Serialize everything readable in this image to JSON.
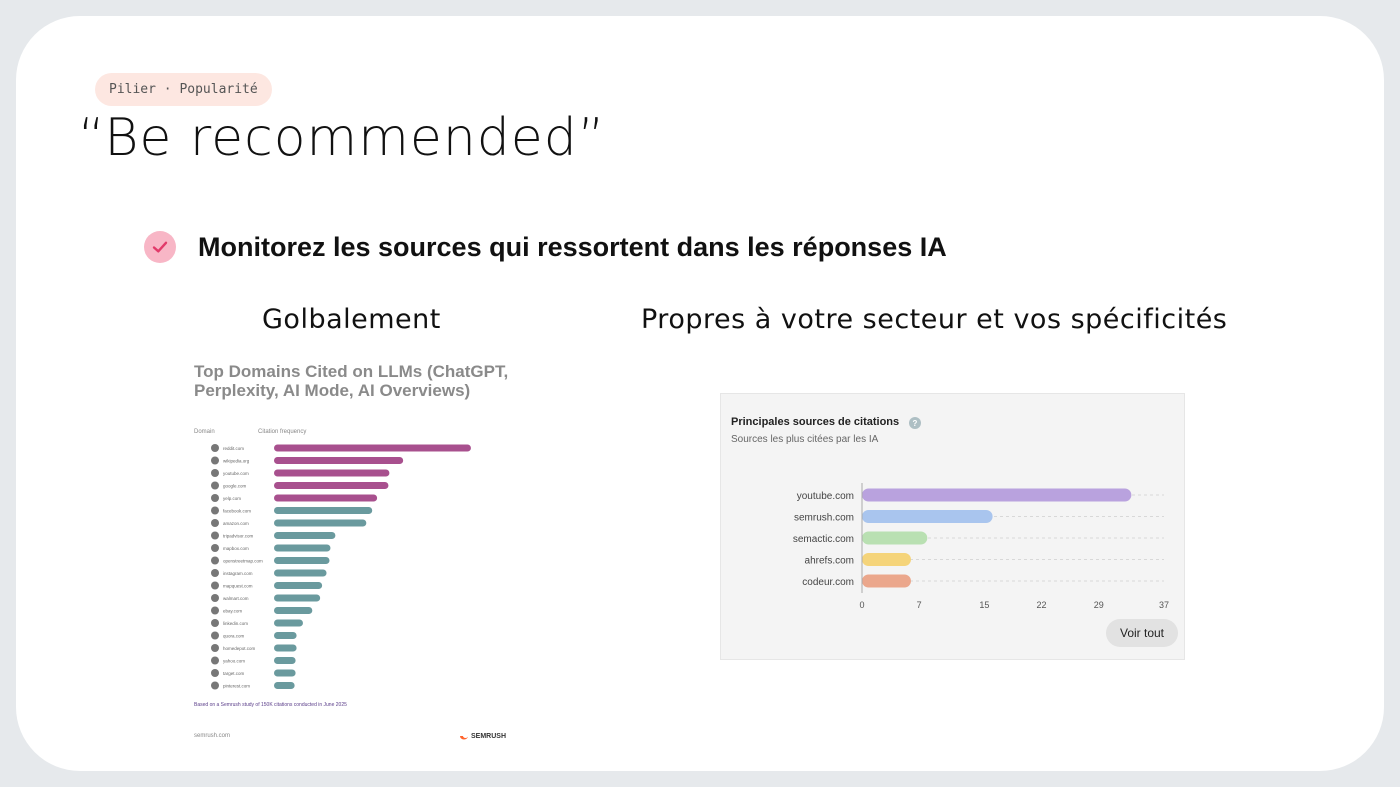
{
  "slide": {
    "pill": "Pilier · Popularité",
    "title": "“Be recommended”",
    "bullet": "Monitorez les sources qui ressortent dans les réponses IA",
    "left_heading": "Golbalement",
    "right_heading": "Propres à votre secteur et vos spécificités"
  },
  "left_chart": {
    "title": "Top Domains Cited on LLMs (ChatGPT, Perplexity, AI Mode, AI Overviews)",
    "col_domain": "Domain",
    "col_freq": "Citation frequency",
    "footnote": "Based on a Semrush study of 150K citations conducted in June 2025",
    "site": "semrush.com",
    "logo": "SEMRUSH"
  },
  "right_chart": {
    "title": "Principales sources de citations",
    "help": "?",
    "subtitle": "Sources les plus citées par les IA",
    "button": "Voir tout"
  },
  "chart_data": [
    {
      "type": "bar",
      "orientation": "horizontal",
      "title": "Top Domains Cited on LLMs (ChatGPT, Perplexity, AI Mode, AI Overviews)",
      "xlabel": "Citation frequency",
      "ylabel": "Domain",
      "categories": [
        "reddit.com",
        "wikipedia.org",
        "youtube.com",
        "google.com",
        "yelp.com",
        "facebook.com",
        "amazon.com",
        "tripadvisor.com",
        "mapbox.com",
        "openstreetmap.com",
        "instagram.com",
        "mapquest.com",
        "walmart.com",
        "ebay.com",
        "linkedin.com",
        "quora.com",
        "homedepot.com",
        "yahoo.com",
        "target.com",
        "pinterest.com"
      ],
      "values": [
        40.1,
        26.3,
        23.5,
        23.3,
        21.0,
        20.0,
        18.8,
        12.5,
        11.5,
        11.3,
        10.7,
        9.8,
        9.4,
        7.8,
        5.9,
        4.6,
        4.6,
        4.4,
        4.4,
        4.2
      ],
      "colors": [
        "#a8508e",
        "#a8508e",
        "#a8508e",
        "#a8508e",
        "#a8508e",
        "#6a9a9e",
        "#6a9a9e",
        "#6a9a9e",
        "#6a9a9e",
        "#6a9a9e",
        "#6a9a9e",
        "#6a9a9e",
        "#6a9a9e",
        "#6a9a9e",
        "#6a9a9e",
        "#6a9a9e",
        "#6a9a9e",
        "#6a9a9e",
        "#6a9a9e",
        "#6a9a9e"
      ],
      "xlim": [
        0,
        45
      ],
      "grid": false
    },
    {
      "type": "bar",
      "orientation": "horizontal",
      "title": "Principales sources de citations",
      "subtitle": "Sources les plus citées par les IA",
      "categories": [
        "youtube.com",
        "semrush.com",
        "semactic.com",
        "ahrefs.com",
        "codeur.com"
      ],
      "values": [
        33,
        16,
        8,
        6,
        6
      ],
      "colors": [
        "#b9a2de",
        "#a9c5ee",
        "#b9e0b2",
        "#f5d47a",
        "#eba78c"
      ],
      "xticks": [
        "0",
        "7",
        "15",
        "22",
        "29",
        "37"
      ],
      "xlim": [
        0,
        37
      ],
      "grid": true
    }
  ]
}
